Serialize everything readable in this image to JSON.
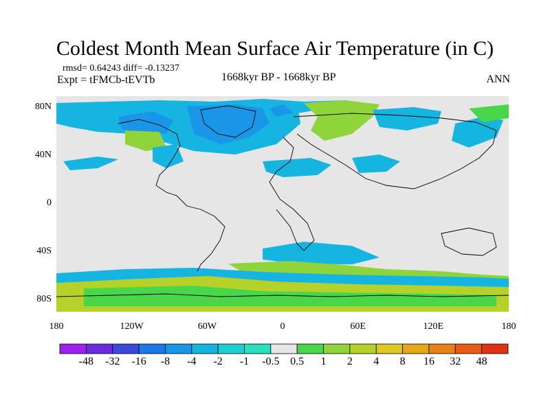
{
  "title": "Coldest Month Mean Surface Air Temperature (in C)",
  "stats": "rmsd= 0.64243 diff= -0.13237",
  "experiment": "Expt = tFMCb-tEVTb",
  "period": "1668kyr BP - 1668kyr BP",
  "season": "ANN",
  "y_ticks": [
    {
      "label": "80N",
      "lat": 80
    },
    {
      "label": "40N",
      "lat": 40
    },
    {
      "label": "0",
      "lat": 0
    },
    {
      "label": "40S",
      "lat": -40
    },
    {
      "label": "80S",
      "lat": -80
    }
  ],
  "x_ticks": [
    {
      "label": "180",
      "lon": -180
    },
    {
      "label": "120W",
      "lon": -120
    },
    {
      "label": "60W",
      "lon": -60
    },
    {
      "label": "0",
      "lon": 0
    },
    {
      "label": "60E",
      "lon": 60
    },
    {
      "label": "120E",
      "lon": 120
    },
    {
      "label": "180",
      "lon": 180
    }
  ],
  "colorbar": {
    "labels": [
      "-48",
      "-32",
      "-16",
      "-8",
      "-4",
      "-2",
      "-1",
      "-0.5",
      "0.5",
      "1",
      "2",
      "4",
      "8",
      "16",
      "32",
      "48"
    ],
    "colors": [
      "#a020f0",
      "#6a2be0",
      "#3f49d8",
      "#1e78e6",
      "#1a96e8",
      "#16b4e0",
      "#1ccfd2",
      "#28e0c0",
      "#e6e6e6",
      "#4ad64a",
      "#8ed43a",
      "#b6d22a",
      "#dcc81e",
      "#e6a81a",
      "#e68218",
      "#e65c16",
      "#e23214"
    ]
  },
  "colors": {
    "neutral": "#e6e6e6",
    "blue": "#1a96e8",
    "cyan": "#16b4e0",
    "teal": "#28e0c0",
    "green": "#8ed43a",
    "lime": "#4ad64a",
    "yellow": "#b6d22a"
  }
}
